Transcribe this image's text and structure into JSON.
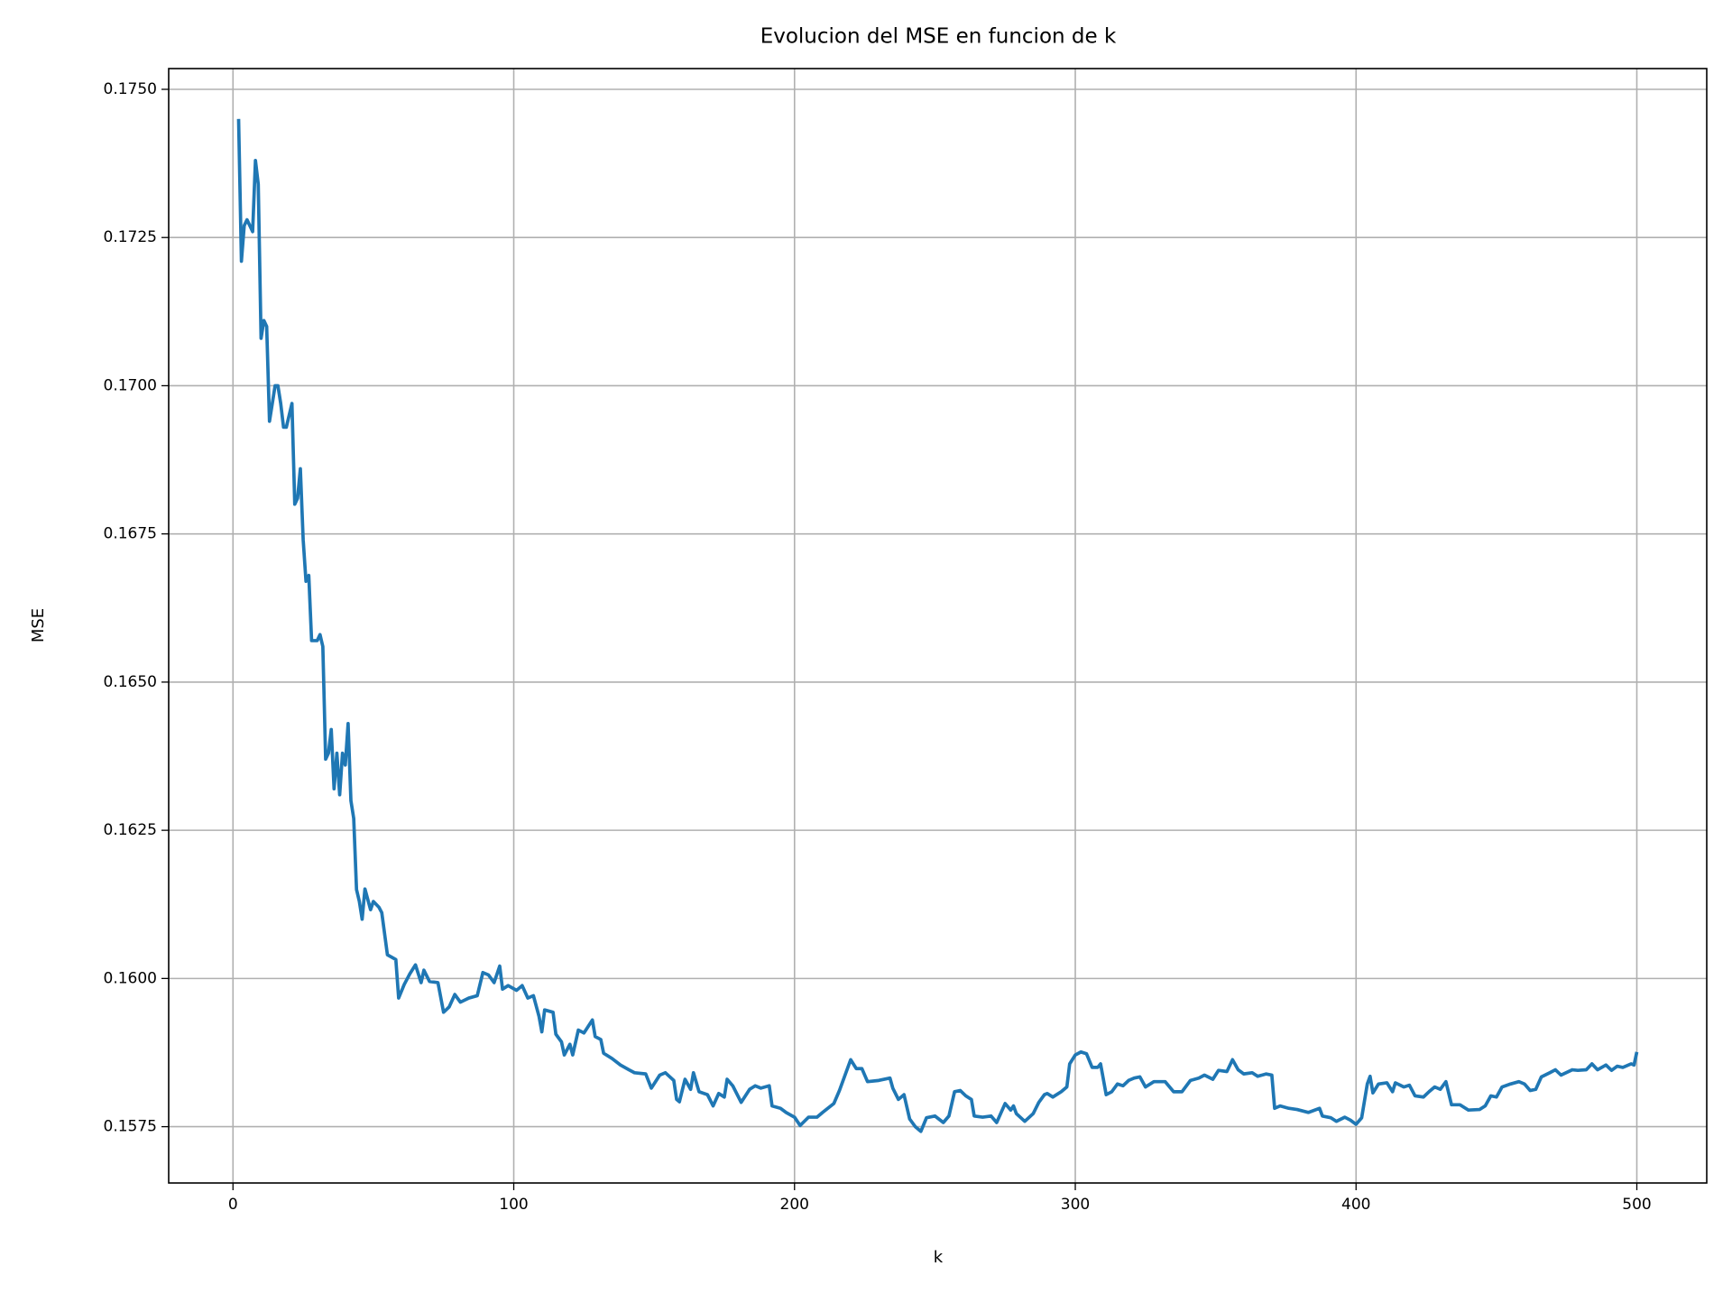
{
  "chart_data": {
    "type": "line",
    "title": "Evolucion del MSE en funcion de k",
    "xlabel": "k",
    "ylabel": "MSE",
    "grid": true,
    "xlim": [
      -22.9,
      524.9
    ],
    "ylim": [
      0.15655,
      0.17535
    ],
    "xticks": [
      0,
      100,
      200,
      300,
      400,
      500
    ],
    "yticks": [
      0.1575,
      {
        "value": 0.16,
        "label": "0.1600"
      },
      0.1625,
      {
        "value": 0.165,
        "label": "0.1650"
      },
      0.1675,
      {
        "value": 0.17,
        "label": "0.1700"
      },
      0.1725,
      {
        "value": 0.175,
        "label": "0.1750"
      }
    ],
    "x": [
      2,
      3,
      4,
      5,
      6,
      7,
      8,
      9,
      10,
      11,
      12,
      13,
      14,
      15,
      16,
      17,
      18,
      19,
      20,
      21,
      22,
      23,
      24,
      25,
      26,
      27,
      28,
      30,
      31,
      32,
      33,
      34,
      35,
      36,
      37,
      38,
      39,
      40,
      41,
      42,
      43,
      44,
      45,
      46,
      47,
      49,
      50,
      52,
      53,
      55,
      58,
      59,
      61,
      63,
      65,
      67,
      68,
      70,
      73,
      75,
      77,
      79,
      81,
      84,
      87,
      89,
      91,
      93,
      95,
      96,
      98,
      101,
      103,
      105,
      107,
      109,
      110,
      111,
      114,
      115,
      117,
      118,
      120,
      121,
      123,
      125,
      128,
      129,
      131,
      132,
      135,
      138,
      141,
      143,
      147,
      149,
      152,
      154,
      157,
      158,
      159,
      161,
      163,
      164,
      166,
      169,
      171,
      173,
      175,
      176,
      178,
      181,
      184,
      186,
      188,
      191,
      192,
      195,
      197,
      200,
      202,
      205,
      208,
      210,
      214,
      216,
      220,
      222,
      224,
      226,
      230,
      234,
      235,
      237,
      239,
      241,
      243,
      245,
      247,
      250,
      253,
      255,
      257,
      259,
      261,
      263,
      264,
      267,
      270,
      272,
      275,
      277,
      278,
      279,
      282,
      285,
      287,
      289,
      290,
      292,
      295,
      297,
      298,
      300,
      302,
      304,
      306,
      308,
      309,
      311,
      313,
      315,
      317,
      319,
      321,
      323,
      325,
      328,
      332,
      335,
      338,
      341,
      344,
      346,
      349,
      351,
      354,
      356,
      358,
      360,
      363,
      365,
      368,
      370,
      371,
      373,
      376,
      379,
      383,
      387,
      388,
      391,
      393,
      396,
      398,
      400,
      402,
      404,
      405,
      406,
      408,
      411,
      413,
      414,
      417,
      419,
      421,
      424,
      426,
      428,
      430,
      432,
      434,
      437,
      440,
      444,
      446,
      448,
      450,
      452,
      455,
      458,
      460,
      462,
      464,
      466,
      469,
      471,
      473,
      477,
      479,
      482,
      484,
      486,
      489,
      491,
      493,
      495,
      498,
      499,
      500
    ],
    "series": [
      {
        "color": "#1f77b4",
        "values": [
          0.1745,
          0.1721,
          0.1727,
          0.1728,
          0.1727,
          0.1726,
          0.1738,
          0.1734,
          0.1708,
          0.1711,
          0.171,
          0.1694,
          0.1697,
          0.17,
          0.17,
          0.1697,
          0.1693,
          0.1693,
          0.1695,
          0.1697,
          0.168,
          0.1681,
          0.1686,
          0.1674,
          0.1667,
          0.1668,
          0.1657,
          0.1657,
          0.1658,
          0.1656,
          0.1637,
          0.1638,
          0.1642,
          0.1632,
          0.1638,
          0.1631,
          0.1638,
          0.1636,
          0.1643,
          0.163,
          0.1627,
          0.1615,
          0.1613,
          0.161,
          0.16151,
          0.16116,
          0.1613,
          0.1612,
          0.16111,
          0.1604,
          0.16032,
          0.15967,
          0.1599,
          0.16008,
          0.16023,
          0.15993,
          0.16014,
          0.15995,
          0.15993,
          0.15943,
          0.15952,
          0.15973,
          0.1596,
          0.15967,
          0.15971,
          0.1601,
          0.16006,
          0.15993,
          0.16021,
          0.15982,
          0.15988,
          0.1598,
          0.15988,
          0.15967,
          0.15971,
          0.15936,
          0.1591,
          0.15947,
          0.15943,
          0.15906,
          0.15893,
          0.15871,
          0.15889,
          0.15871,
          0.15913,
          0.15908,
          0.1593,
          0.15902,
          0.15897,
          0.15874,
          0.15865,
          0.15854,
          0.15846,
          0.15841,
          0.15839,
          0.15815,
          0.15837,
          0.15841,
          0.15828,
          0.15796,
          0.15792,
          0.1583,
          0.15813,
          0.15841,
          0.15809,
          0.15804,
          0.15785,
          0.15806,
          0.158,
          0.1583,
          0.15819,
          0.15791,
          0.15813,
          0.15819,
          0.15815,
          0.15819,
          0.15785,
          0.15781,
          0.15774,
          0.15766,
          0.15752,
          0.15766,
          0.15766,
          0.15774,
          0.15789,
          0.15811,
          0.15863,
          0.15848,
          0.15848,
          0.15826,
          0.15828,
          0.15832,
          0.15815,
          0.15796,
          0.15804,
          0.15763,
          0.1575,
          0.15742,
          0.15765,
          0.15768,
          0.15757,
          0.15768,
          0.15809,
          0.15811,
          0.15802,
          0.15796,
          0.15768,
          0.15766,
          0.15768,
          0.15757,
          0.15789,
          0.15778,
          0.15785,
          0.15772,
          0.15759,
          0.15772,
          0.15791,
          0.15804,
          0.15806,
          0.158,
          0.15809,
          0.15817,
          0.15856,
          0.15871,
          0.15876,
          0.15873,
          0.1585,
          0.1585,
          0.15856,
          0.15804,
          0.15809,
          0.15822,
          0.15819,
          0.15828,
          0.15832,
          0.15834,
          0.15817,
          0.15826,
          0.15826,
          0.15809,
          0.15809,
          0.15828,
          0.15832,
          0.15837,
          0.1583,
          0.15845,
          0.15843,
          0.15863,
          0.15846,
          0.15839,
          0.15841,
          0.15835,
          0.15839,
          0.15837,
          0.15781,
          0.15785,
          0.15781,
          0.15779,
          0.15774,
          0.15781,
          0.15768,
          0.15765,
          0.15759,
          0.15766,
          0.15761,
          0.15754,
          0.15765,
          0.15822,
          0.15835,
          0.15807,
          0.15822,
          0.15824,
          0.15809,
          0.15824,
          0.15817,
          0.1582,
          0.15802,
          0.158,
          0.15809,
          0.15817,
          0.15813,
          0.15826,
          0.15787,
          0.15787,
          0.15778,
          0.15779,
          0.15785,
          0.15802,
          0.158,
          0.15817,
          0.15822,
          0.15826,
          0.15822,
          0.15811,
          0.15813,
          0.15834,
          0.15841,
          0.15846,
          0.15837,
          0.15846,
          0.15845,
          0.15846,
          0.15856,
          0.15846,
          0.15854,
          0.15845,
          0.15852,
          0.1585,
          0.15856,
          0.15854,
          0.15876
        ]
      }
    ]
  }
}
